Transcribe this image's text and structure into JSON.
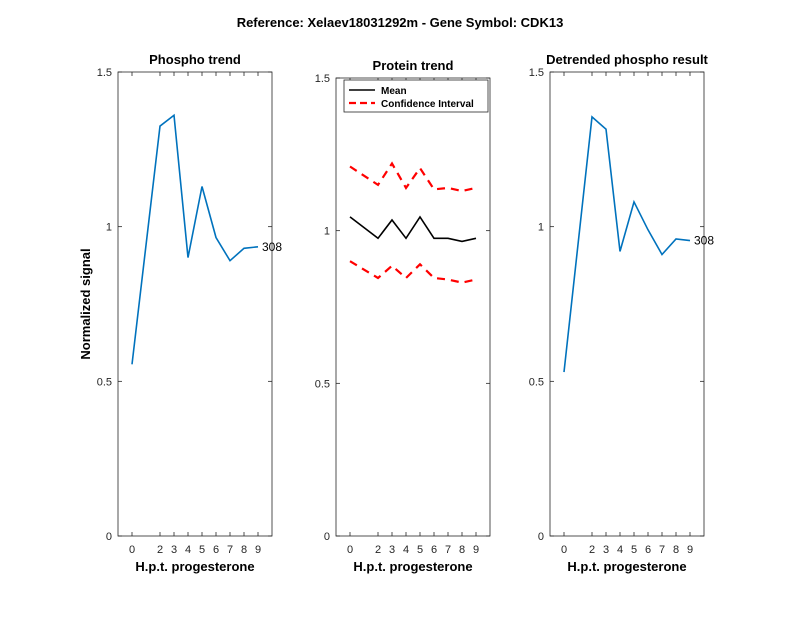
{
  "figure": {
    "suptitle": "Reference:  Xelaev18031292m - Gene Symbol:  CDK13"
  },
  "colors": {
    "blue": "#0072BD",
    "black": "#000000",
    "red": "#FF0000",
    "axis": "#262626"
  },
  "chart_data": [
    {
      "type": "line",
      "title": "Phospho trend",
      "xlabel": "H.p.t. progesterone",
      "ylabel": "Normalized signal",
      "x": [
        0,
        2,
        3,
        4,
        5,
        6,
        7,
        8,
        9
      ],
      "xticks": [
        "0",
        "2",
        "3",
        "4",
        "5",
        "6",
        "7",
        "8",
        "9"
      ],
      "ylim": [
        0,
        1.5
      ],
      "yticks": [
        "0",
        "0.5",
        "1",
        "1.5"
      ],
      "series": [
        {
          "values": [
            0.555,
            1.325,
            1.36,
            0.9,
            1.13,
            0.965,
            0.89,
            0.93,
            0.935
          ],
          "color": "#0072BD",
          "style": "solid"
        }
      ],
      "annotations": [
        {
          "text": "308",
          "x": 9,
          "y": 0.935
        }
      ]
    },
    {
      "type": "line",
      "title": "Protein trend",
      "xlabel": "H.p.t. progesterone",
      "ylabel": "",
      "x": [
        0,
        2,
        3,
        4,
        5,
        6,
        7,
        8,
        9
      ],
      "xticks": [
        "0",
        "2",
        "3",
        "4",
        "5",
        "6",
        "7",
        "8",
        "9"
      ],
      "ylim": [
        0,
        1.5
      ],
      "yticks": [
        "0",
        "0.5",
        "1",
        "1.5"
      ],
      "legend": {
        "position": "top-left"
      },
      "series": [
        {
          "name": "Mean",
          "values": [
            1.045,
            0.975,
            1.035,
            0.975,
            1.045,
            0.975,
            0.975,
            0.965,
            0.975
          ],
          "color": "#000000",
          "style": "solid"
        },
        {
          "name": "Confidence Interval",
          "values": [
            1.21,
            1.15,
            1.22,
            1.14,
            1.205,
            1.135,
            1.14,
            1.13,
            1.14
          ],
          "color": "#FF0000",
          "style": "dashed"
        },
        {
          "values": [
            0.9,
            0.845,
            0.885,
            0.845,
            0.89,
            0.845,
            0.84,
            0.83,
            0.84
          ],
          "color": "#FF0000",
          "style": "dashed"
        }
      ],
      "annotations": []
    },
    {
      "type": "line",
      "title": "Detrended phospho result",
      "xlabel": "H.p.t. progesterone",
      "ylabel": "",
      "x": [
        0,
        2,
        3,
        4,
        5,
        6,
        7,
        8,
        9
      ],
      "xticks": [
        "0",
        "2",
        "3",
        "4",
        "5",
        "6",
        "7",
        "8",
        "9"
      ],
      "ylim": [
        0,
        1.5
      ],
      "yticks": [
        "0",
        "0.5",
        "1",
        "1.5"
      ],
      "series": [
        {
          "values": [
            0.53,
            1.355,
            1.315,
            0.92,
            1.08,
            0.99,
            0.91,
            0.96,
            0.955
          ],
          "color": "#0072BD",
          "style": "solid"
        }
      ],
      "annotations": [
        {
          "text": "308",
          "x": 9,
          "y": 0.955
        }
      ]
    }
  ]
}
